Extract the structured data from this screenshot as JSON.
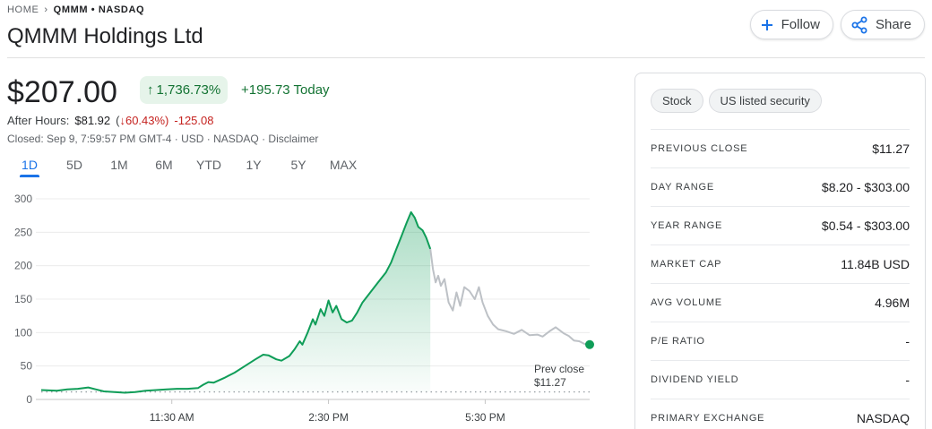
{
  "breadcrumb": {
    "home": "HOME",
    "current": "QMMM • NASDAQ"
  },
  "title": "QMMM Holdings Ltd",
  "buttons": {
    "follow": "Follow",
    "share": "Share"
  },
  "price": "$207.00",
  "change": {
    "arrow": "↑",
    "percent": "1,736.73%",
    "today": "+195.73 Today"
  },
  "after_hours": {
    "label": "After Hours:",
    "price": "$81.92",
    "open_paren": "(",
    "arrow": "↓",
    "percent": "60.43%)",
    "change": "-125.08"
  },
  "closed_line": "Closed: Sep 9, 7:59:57 PM GMT-4 · USD · NASDAQ · Disclaimer",
  "range_tabs": [
    "1D",
    "5D",
    "1M",
    "6M",
    "YTD",
    "1Y",
    "5Y",
    "MAX"
  ],
  "active_range": "1D",
  "colors": {
    "positive": "#137333",
    "negative": "#c5221f",
    "accent": "#1a73e8",
    "line_green": "#0f9d58",
    "line_gray": "#bdc1c6"
  },
  "chart_data": {
    "type": "line",
    "y_ticks": [
      0,
      50,
      100,
      150,
      200,
      250,
      300
    ],
    "ylim": [
      0,
      300
    ],
    "x_ticks": [
      {
        "label": "11:30 AM",
        "t": 2.0
      },
      {
        "label": "2:30 PM",
        "t": 5.0
      },
      {
        "label": "5:30 PM",
        "t": 8.0
      }
    ],
    "xlim": [
      -0.5,
      10.0
    ],
    "prev_close": {
      "value": 11.27,
      "label_line1": "Prev close",
      "label_line2": "$11.27"
    },
    "series": [
      {
        "session": "regular",
        "points": [
          [
            -0.5,
            14
          ],
          [
            -0.2,
            13
          ],
          [
            0.0,
            15
          ],
          [
            0.2,
            16
          ],
          [
            0.4,
            18
          ],
          [
            0.55,
            15
          ],
          [
            0.7,
            12
          ],
          [
            0.9,
            11
          ],
          [
            1.1,
            10
          ],
          [
            1.3,
            11
          ],
          [
            1.5,
            13
          ],
          [
            1.7,
            14
          ],
          [
            1.9,
            15
          ],
          [
            2.1,
            16
          ],
          [
            2.3,
            16
          ],
          [
            2.5,
            17
          ],
          [
            2.6,
            22
          ],
          [
            2.7,
            26
          ],
          [
            2.8,
            25
          ],
          [
            3.0,
            32
          ],
          [
            3.2,
            40
          ],
          [
            3.4,
            50
          ],
          [
            3.6,
            60
          ],
          [
            3.75,
            67
          ],
          [
            3.85,
            66
          ],
          [
            4.0,
            60
          ],
          [
            4.1,
            58
          ],
          [
            4.25,
            65
          ],
          [
            4.35,
            75
          ],
          [
            4.45,
            87
          ],
          [
            4.5,
            82
          ],
          [
            4.6,
            100
          ],
          [
            4.7,
            120
          ],
          [
            4.75,
            112
          ],
          [
            4.85,
            135
          ],
          [
            4.92,
            125
          ],
          [
            5.0,
            148
          ],
          [
            5.08,
            130
          ],
          [
            5.15,
            140
          ],
          [
            5.25,
            120
          ],
          [
            5.35,
            115
          ],
          [
            5.45,
            118
          ],
          [
            5.55,
            130
          ],
          [
            5.65,
            145
          ],
          [
            5.8,
            160
          ],
          [
            5.95,
            175
          ],
          [
            6.1,
            190
          ],
          [
            6.2,
            205
          ],
          [
            6.3,
            225
          ],
          [
            6.4,
            245
          ],
          [
            6.5,
            265
          ],
          [
            6.58,
            280
          ],
          [
            6.65,
            272
          ],
          [
            6.72,
            258
          ],
          [
            6.8,
            253
          ],
          [
            6.87,
            242
          ],
          [
            6.95,
            225
          ]
        ]
      },
      {
        "session": "after-hours",
        "points": [
          [
            6.95,
            225
          ],
          [
            7.0,
            195
          ],
          [
            7.05,
            175
          ],
          [
            7.1,
            185
          ],
          [
            7.15,
            170
          ],
          [
            7.22,
            180
          ],
          [
            7.3,
            145
          ],
          [
            7.38,
            133
          ],
          [
            7.45,
            160
          ],
          [
            7.52,
            140
          ],
          [
            7.6,
            168
          ],
          [
            7.7,
            162
          ],
          [
            7.8,
            150
          ],
          [
            7.88,
            168
          ],
          [
            7.95,
            145
          ],
          [
            8.05,
            125
          ],
          [
            8.15,
            112
          ],
          [
            8.25,
            105
          ],
          [
            8.4,
            102
          ],
          [
            8.55,
            98
          ],
          [
            8.7,
            104
          ],
          [
            8.85,
            96
          ],
          [
            9.0,
            97
          ],
          [
            9.1,
            94
          ],
          [
            9.25,
            103
          ],
          [
            9.35,
            108
          ],
          [
            9.5,
            99
          ],
          [
            9.6,
            95
          ],
          [
            9.7,
            88
          ],
          [
            9.8,
            87
          ],
          [
            9.9,
            83
          ],
          [
            10.0,
            82
          ]
        ]
      }
    ]
  },
  "chips": [
    "Stock",
    "US listed security"
  ],
  "stats": [
    {
      "label": "PREVIOUS CLOSE",
      "value": "$11.27"
    },
    {
      "label": "DAY RANGE",
      "value": "$8.20 - $303.00"
    },
    {
      "label": "YEAR RANGE",
      "value": "$0.54 - $303.00"
    },
    {
      "label": "MARKET CAP",
      "value": "11.84B USD"
    },
    {
      "label": "AVG VOLUME",
      "value": "4.96M"
    },
    {
      "label": "P/E RATIO",
      "value": "-"
    },
    {
      "label": "DIVIDEND YIELD",
      "value": "-"
    },
    {
      "label": "PRIMARY EXCHANGE",
      "value": "NASDAQ"
    }
  ]
}
